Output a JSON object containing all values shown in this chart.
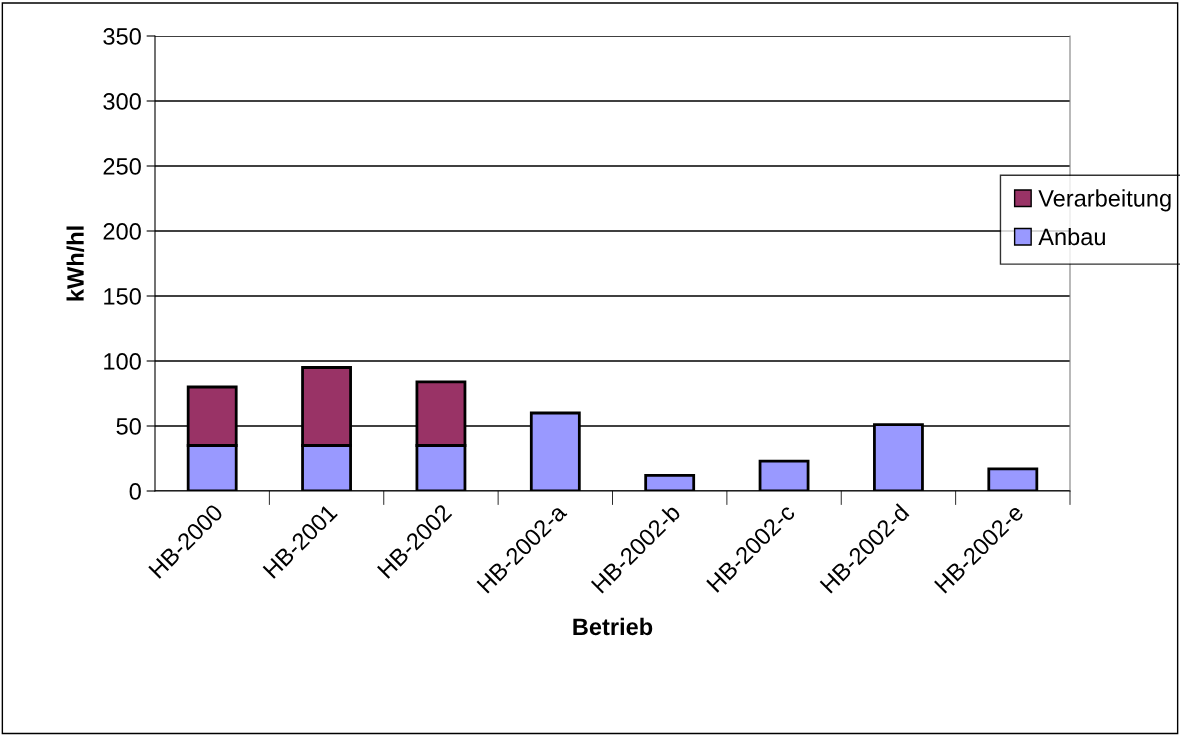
{
  "chart_data": {
    "type": "bar",
    "xlabel": "Betrieb",
    "ylabel": "kWh/hl",
    "categories": [
      "HB-2000",
      "HB-2001",
      "HB-2002",
      "HB-2002-a",
      "HB-2002-b",
      "HB-2002-c",
      "HB-2002-d",
      "HB-2002-e"
    ],
    "series": [
      {
        "name": "Anbau",
        "color": "#9999ff",
        "values": [
          35,
          35,
          35,
          60,
          12,
          23,
          51,
          17
        ]
      },
      {
        "name": "Verarbeitung",
        "color": "#993366",
        "values": [
          45,
          60,
          49,
          null,
          null,
          null,
          null,
          null
        ]
      }
    ],
    "stacked": true,
    "ylim": [
      0,
      350
    ],
    "yticks": [
      0,
      50,
      100,
      150,
      200,
      250,
      300,
      350
    ],
    "grid": "y",
    "legend": "right"
  }
}
